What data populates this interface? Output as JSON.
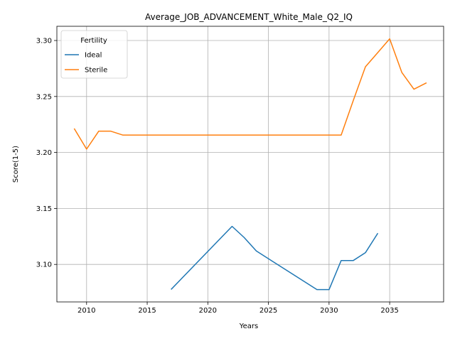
{
  "chart_data": {
    "type": "line",
    "title": "Average_JOB_ADVANCEMENT_White_Male_Q2_IQ",
    "xlabel": "Years",
    "ylabel": "Score(1-5)",
    "xlim": [
      2007.55,
      2039.45
    ],
    "ylim": [
      3.0665,
      3.3127
    ],
    "xticks": [
      2010,
      2015,
      2020,
      2025,
      2030,
      2035
    ],
    "yticks": [
      3.1,
      3.15,
      3.2,
      3.25,
      3.3
    ],
    "ytick_labels": [
      "3.10",
      "3.15",
      "3.20",
      "3.25",
      "3.30"
    ],
    "grid": true,
    "legend": {
      "title": "Fertility",
      "position": "upper-left"
    },
    "series": [
      {
        "name": "Ideal",
        "color": "#1f77b4",
        "x": [
          2017,
          2022,
          2023,
          2024,
          2029,
          2030,
          2031,
          2032,
          2033,
          2034
        ],
        "y": [
          3.078,
          3.134,
          3.124,
          3.112,
          3.0775,
          3.0775,
          3.1035,
          3.1035,
          3.1105,
          3.1275
        ]
      },
      {
        "name": "Sterile",
        "color": "#ff7f0e",
        "x": [
          2009,
          2010,
          2011,
          2012,
          2013,
          2014,
          2015,
          2016,
          2017,
          2018,
          2019,
          2020,
          2021,
          2022,
          2023,
          2024,
          2025,
          2026,
          2027,
          2028,
          2029,
          2030,
          2031,
          2032,
          2033,
          2034,
          2035,
          2036,
          2037,
          2038
        ],
        "y": [
          3.221,
          3.203,
          3.219,
          3.219,
          3.2155,
          3.2155,
          3.2155,
          3.2155,
          3.2155,
          3.2155,
          3.2155,
          3.2155,
          3.2155,
          3.2155,
          3.2155,
          3.2155,
          3.2155,
          3.2155,
          3.2155,
          3.2155,
          3.2155,
          3.2155,
          3.2155,
          3.2465,
          3.2765,
          3.289,
          3.3015,
          3.2715,
          3.2565,
          3.262
        ]
      }
    ]
  }
}
